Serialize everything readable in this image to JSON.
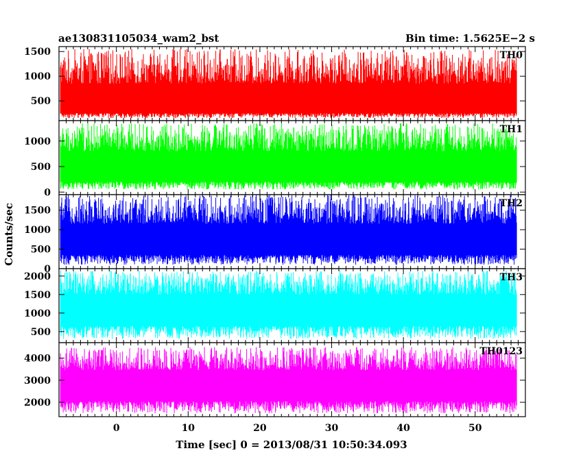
{
  "chart_data": {
    "type": "line",
    "title_left": "ae130831105034_wam2_bst",
    "title_right": "Bin time: 1.5625E−2 s",
    "xlabel": "Time [sec] 0 = 2013/08/31 10:50:34.093",
    "ylabel": "Counts/sec",
    "xlim": [
      -8,
      57
    ],
    "x_ticks": [
      0,
      10,
      20,
      30,
      40,
      50
    ],
    "x_range_data": [
      -7.8,
      55.8
    ],
    "grid": false,
    "series": [
      {
        "name": "TH0",
        "color": "#ff0000",
        "ylim": [
          100,
          1600
        ],
        "y_ticks": [
          500,
          1000,
          1500
        ],
        "base_low": 250,
        "base_high": 850,
        "peak_max": 1550,
        "dip_min": 150
      },
      {
        "name": "TH1",
        "color": "#00ff00",
        "ylim": [
          -50,
          1400
        ],
        "y_ticks": [
          0,
          500,
          1000
        ],
        "base_low": 200,
        "base_high": 800,
        "peak_max": 1350,
        "dip_min": 50
      },
      {
        "name": "TH2",
        "color": "#0000ff",
        "ylim": [
          0,
          1900
        ],
        "y_ticks": [
          0,
          500,
          1000,
          1500
        ],
        "base_low": 350,
        "base_high": 1150,
        "peak_max": 1900,
        "dip_min": 100
      },
      {
        "name": "TH3",
        "color": "#00ffff",
        "ylim": [
          200,
          2200
        ],
        "y_ticks": [
          500,
          1000,
          1500,
          2000
        ],
        "base_low": 650,
        "base_high": 1500,
        "peak_max": 2150,
        "dip_min": 300
      },
      {
        "name": "TH0123",
        "color": "#ff00ff",
        "ylim": [
          1350,
          4700
        ],
        "y_ticks": [
          2000,
          3000,
          4000
        ],
        "base_low": 2050,
        "base_high": 3450,
        "peak_max": 4500,
        "dip_min": 1500
      }
    ]
  }
}
